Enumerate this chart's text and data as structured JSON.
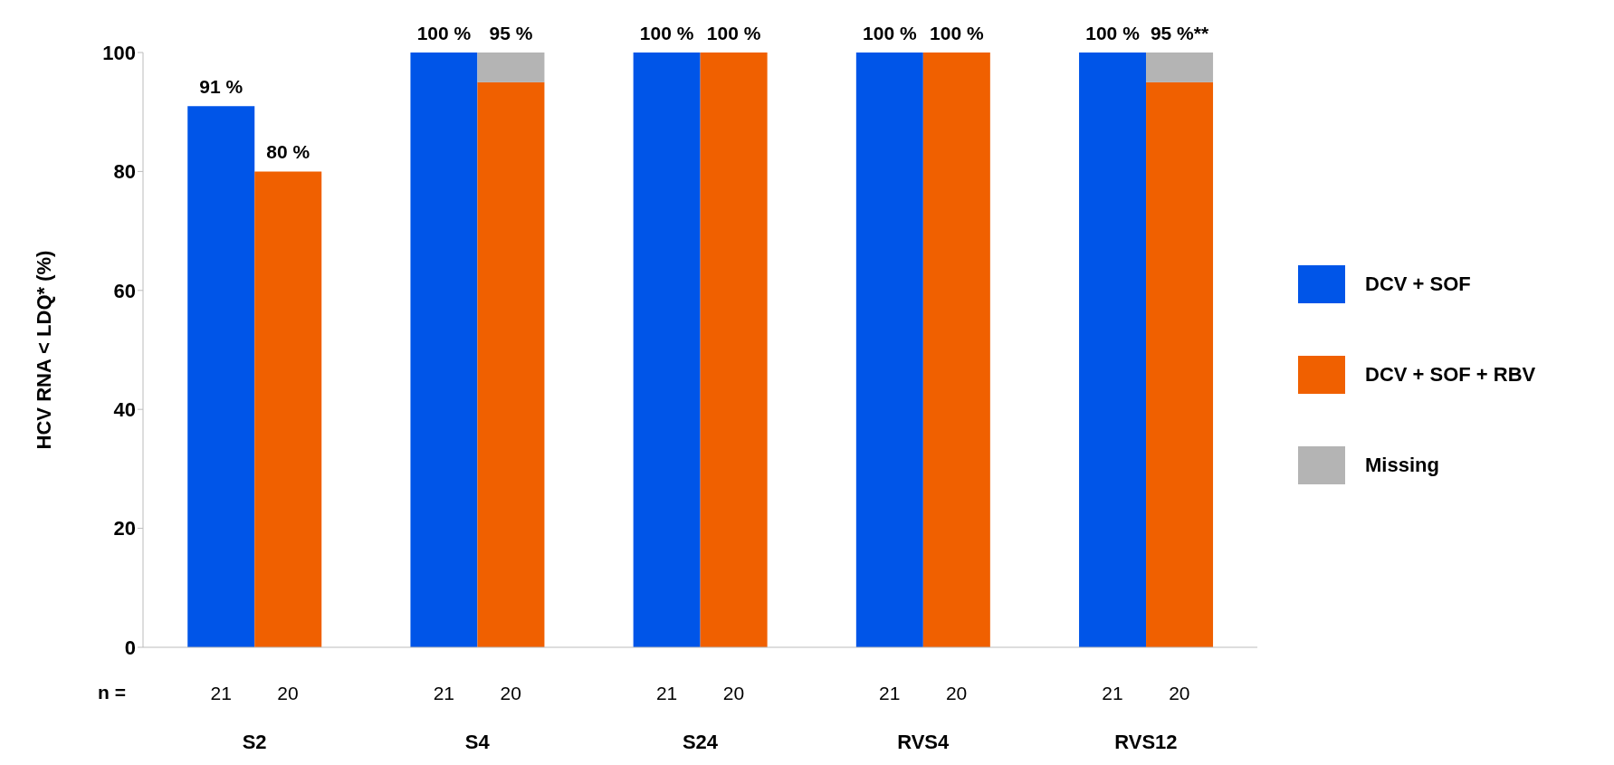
{
  "chart_data": {
    "type": "bar",
    "ylabel": "HCV RNA  < LDQ* (%)",
    "categories": [
      "S2",
      "S4",
      "S24",
      "RVS4",
      "RVS12"
    ],
    "series": [
      {
        "name": "DCV + SOF",
        "color": "#0055e8",
        "values": [
          91,
          100,
          100,
          100,
          100
        ],
        "value_labels": [
          "91 %",
          "100 %",
          "100 %",
          "100 %",
          "100 %"
        ]
      },
      {
        "name": "DCV + SOF + RBV",
        "color": "#f06000",
        "values": [
          80,
          95,
          100,
          100,
          95
        ],
        "value_labels": [
          "80 %",
          "95 %",
          "100 %",
          "100 %",
          "95 %**"
        ]
      },
      {
        "name": "Missing",
        "color": "#b4b4b4",
        "values": [
          null,
          5,
          null,
          null,
          5
        ],
        "base": [
          null,
          95,
          null,
          null,
          95
        ]
      }
    ],
    "ylim": [
      0,
      100
    ],
    "yticks": [
      0,
      20,
      40,
      60,
      80,
      100
    ],
    "grid": false,
    "legend": "right",
    "annotations": [
      "n =",
      "21",
      "20",
      "21",
      "20",
      "21",
      "20",
      "21",
      "20",
      "21",
      "20"
    ]
  }
}
